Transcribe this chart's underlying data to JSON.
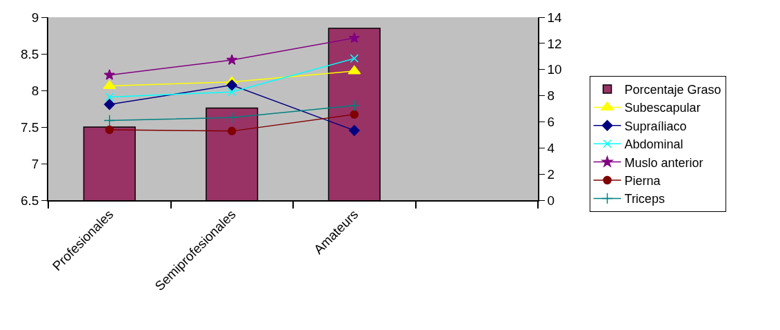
{
  "chart_data": {
    "type": "bar",
    "categories": [
      "Profesionales",
      "Semiprofesionales",
      "Amateurs",
      null
    ],
    "ylim": [
      6.5,
      9
    ],
    "yticks": [
      6.5,
      7,
      7.5,
      8,
      8.5,
      9
    ],
    "y2lim": [
      0,
      14
    ],
    "y2ticks": [
      0,
      2,
      4,
      6,
      8,
      10,
      12,
      14
    ],
    "grid": false,
    "legend": "right",
    "series": [
      {
        "name": "Porcentaje Graso",
        "color": "#993366",
        "values": [
          7.5,
          7.76,
          8.85,
          null
        ]
      },
      {
        "name": "Subescapular",
        "type": "line",
        "axis": "y2",
        "marker": "triangle",
        "color": "#ffff00",
        "values": [
          8.75,
          9.05,
          9.88,
          null
        ]
      },
      {
        "name": "Supraíliaco",
        "type": "line",
        "axis": "y2",
        "marker": "diamond",
        "color": "#000080",
        "values": [
          7.33,
          8.81,
          5.34,
          null
        ]
      },
      {
        "name": "Abdominal",
        "type": "line",
        "axis": "y2",
        "marker": "x",
        "color": "#00ffff",
        "values": [
          7.9,
          8.28,
          10.85,
          null
        ]
      },
      {
        "name": "Muslo anterior",
        "type": "line",
        "axis": "y2",
        "marker": "star",
        "color": "#800080",
        "values": [
          9.58,
          10.73,
          12.41,
          null
        ]
      },
      {
        "name": "Pierna",
        "type": "line",
        "axis": "y2",
        "marker": "circle",
        "color": "#800000",
        "values": [
          5.39,
          5.29,
          6.56,
          null
        ]
      },
      {
        "name": "Triceps",
        "type": "line",
        "axis": "y2",
        "marker": "cross",
        "color": "#008080",
        "values": [
          6.1,
          6.32,
          7.24,
          null
        ]
      }
    ]
  }
}
